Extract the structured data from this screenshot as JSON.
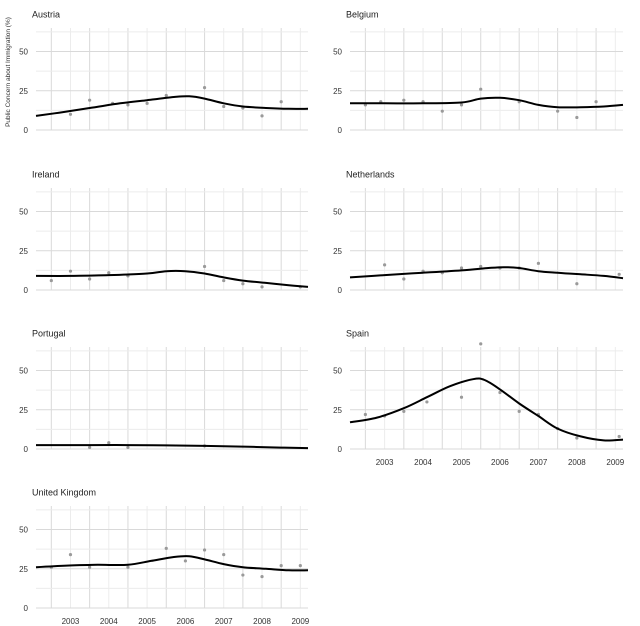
{
  "chart_data": {
    "type": "line",
    "ylabel": "Public Concern about Immigration (%)",
    "x_ticks": [
      "2003",
      "2004",
      "2005",
      "2006",
      "2007",
      "2008",
      "2009"
    ],
    "xlim": [
      2002.6,
      2009.7
    ],
    "ylim": [
      0,
      65
    ],
    "y_ticks": [
      0,
      25,
      50
    ],
    "grid": true,
    "series": [
      {
        "name": "Austria",
        "curve": [
          [
            2002.6,
            9
          ],
          [
            2003.2,
            11
          ],
          [
            2004.0,
            14
          ],
          [
            2004.8,
            17
          ],
          [
            2005.5,
            19
          ],
          [
            2006.2,
            21
          ],
          [
            2006.6,
            21.5
          ],
          [
            2007.0,
            20
          ],
          [
            2007.5,
            17
          ],
          [
            2008.0,
            15
          ],
          [
            2008.6,
            14
          ],
          [
            2009.2,
            13.5
          ],
          [
            2009.7,
            13.5
          ]
        ],
        "points": [
          [
            2003.5,
            10
          ],
          [
            2004.0,
            19
          ],
          [
            2004.6,
            17
          ],
          [
            2005.0,
            16
          ],
          [
            2005.5,
            17
          ],
          [
            2006.0,
            22
          ],
          [
            2007.0,
            27
          ],
          [
            2007.5,
            15
          ],
          [
            2008.0,
            14
          ],
          [
            2008.5,
            9
          ],
          [
            2009.0,
            18
          ]
        ]
      },
      {
        "name": "Belgium",
        "curve": [
          [
            2002.6,
            17
          ],
          [
            2003.5,
            17
          ],
          [
            2004.5,
            17
          ],
          [
            2005.5,
            17.5
          ],
          [
            2006.0,
            20
          ],
          [
            2006.5,
            20.5
          ],
          [
            2007.0,
            19
          ],
          [
            2007.5,
            16
          ],
          [
            2008.0,
            14.5
          ],
          [
            2008.6,
            14.5
          ],
          [
            2009.2,
            15
          ],
          [
            2009.7,
            16
          ]
        ],
        "points": [
          [
            2003.0,
            16
          ],
          [
            2003.4,
            18
          ],
          [
            2004.0,
            19
          ],
          [
            2004.5,
            18
          ],
          [
            2005.0,
            12
          ],
          [
            2005.5,
            16
          ],
          [
            2006.0,
            26
          ],
          [
            2007.0,
            18
          ],
          [
            2008.0,
            12
          ],
          [
            2008.5,
            8
          ],
          [
            2009.0,
            18
          ]
        ]
      },
      {
        "name": "Ireland",
        "curve": [
          [
            2002.6,
            9
          ],
          [
            2003.5,
            9
          ],
          [
            2004.5,
            9.5
          ],
          [
            2005.5,
            10.5
          ],
          [
            2006.0,
            12
          ],
          [
            2006.5,
            12
          ],
          [
            2007.0,
            10.5
          ],
          [
            2007.5,
            8
          ],
          [
            2008.0,
            6
          ],
          [
            2008.6,
            4.5
          ],
          [
            2009.2,
            3
          ],
          [
            2009.7,
            2
          ]
        ],
        "points": [
          [
            2003.0,
            6
          ],
          [
            2003.5,
            12
          ],
          [
            2004.0,
            7
          ],
          [
            2004.5,
            11
          ],
          [
            2005.0,
            9
          ],
          [
            2007.0,
            15
          ],
          [
            2007.5,
            6
          ],
          [
            2008.0,
            4
          ],
          [
            2008.5,
            2
          ],
          [
            2009.5,
            2
          ]
        ]
      },
      {
        "name": "Netherlands",
        "curve": [
          [
            2002.6,
            8
          ],
          [
            2003.5,
            9.5
          ],
          [
            2004.5,
            11
          ],
          [
            2005.5,
            12.5
          ],
          [
            2006.2,
            14
          ],
          [
            2006.6,
            14.5
          ],
          [
            2007.0,
            14
          ],
          [
            2007.5,
            12
          ],
          [
            2008.0,
            11
          ],
          [
            2008.6,
            10
          ],
          [
            2009.2,
            9
          ],
          [
            2009.7,
            7.5
          ]
        ],
        "points": [
          [
            2003.5,
            16
          ],
          [
            2004.0,
            7
          ],
          [
            2004.5,
            12
          ],
          [
            2005.0,
            11
          ],
          [
            2005.5,
            14
          ],
          [
            2006.0,
            15
          ],
          [
            2006.5,
            14
          ],
          [
            2007.0,
            14
          ],
          [
            2007.5,
            17
          ],
          [
            2008.5,
            4
          ],
          [
            2009.6,
            10
          ]
        ]
      },
      {
        "name": "Portugal",
        "curve": [
          [
            2002.6,
            2.5
          ],
          [
            2004.0,
            2.5
          ],
          [
            2005.0,
            2.5
          ],
          [
            2006.0,
            2.3
          ],
          [
            2007.0,
            2.0
          ],
          [
            2008.0,
            1.5
          ],
          [
            2009.0,
            0.9
          ],
          [
            2009.7,
            0.6
          ]
        ],
        "points": [
          [
            2004.0,
            1
          ],
          [
            2004.5,
            4
          ],
          [
            2005.0,
            1
          ],
          [
            2007.0,
            2
          ]
        ]
      },
      {
        "name": "Spain",
        "curve": [
          [
            2002.6,
            17
          ],
          [
            2003.3,
            20
          ],
          [
            2004.0,
            26
          ],
          [
            2004.6,
            33
          ],
          [
            2005.2,
            40
          ],
          [
            2005.8,
            44.5
          ],
          [
            2006.1,
            44
          ],
          [
            2006.5,
            38
          ],
          [
            2007.0,
            29
          ],
          [
            2007.5,
            21
          ],
          [
            2008.0,
            13
          ],
          [
            2008.6,
            8
          ],
          [
            2009.2,
            5.5
          ],
          [
            2009.7,
            6
          ]
        ],
        "points": [
          [
            2003.0,
            22
          ],
          [
            2003.5,
            21
          ],
          [
            2004.0,
            24
          ],
          [
            2004.6,
            30
          ],
          [
            2005.5,
            33
          ],
          [
            2006.0,
            67
          ],
          [
            2006.5,
            36
          ],
          [
            2007.0,
            24
          ],
          [
            2007.5,
            22
          ],
          [
            2008.0,
            13
          ],
          [
            2008.5,
            7
          ],
          [
            2009.6,
            8
          ]
        ]
      },
      {
        "name": "United Kingdom",
        "curve": [
          [
            2002.6,
            26
          ],
          [
            2003.4,
            27
          ],
          [
            2004.2,
            27.5
          ],
          [
            2005.0,
            27.5
          ],
          [
            2005.6,
            30
          ],
          [
            2006.2,
            32.5
          ],
          [
            2006.6,
            33
          ],
          [
            2007.0,
            31
          ],
          [
            2007.5,
            28
          ],
          [
            2008.0,
            26
          ],
          [
            2008.6,
            25
          ],
          [
            2009.2,
            24
          ],
          [
            2009.7,
            24
          ]
        ],
        "points": [
          [
            2003.0,
            26
          ],
          [
            2003.5,
            34
          ],
          [
            2004.0,
            26
          ],
          [
            2005.0,
            26
          ],
          [
            2006.0,
            38
          ],
          [
            2006.5,
            30
          ],
          [
            2007.0,
            37
          ],
          [
            2007.5,
            34
          ],
          [
            2008.0,
            21
          ],
          [
            2008.5,
            20
          ],
          [
            2009.0,
            27
          ],
          [
            2009.5,
            27
          ]
        ]
      }
    ]
  }
}
